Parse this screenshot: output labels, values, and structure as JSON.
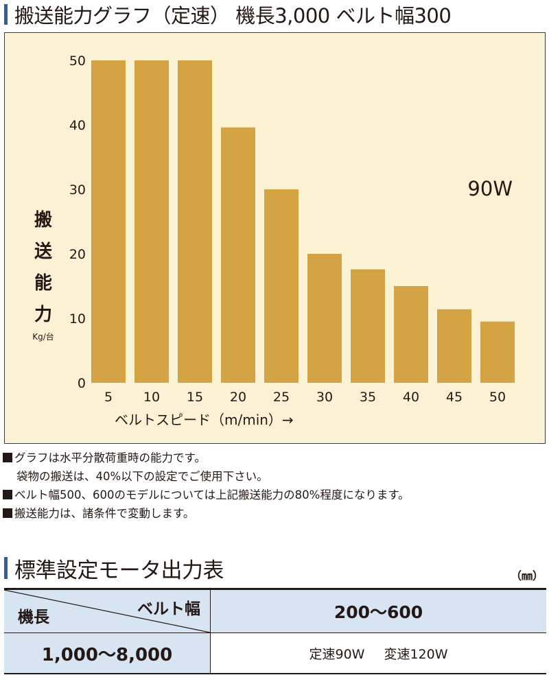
{
  "title": "搬送能力グラフ（定速） 機長3,000 ベルト幅300",
  "chart_data": {
    "type": "bar",
    "categories": [
      "5",
      "10",
      "15",
      "20",
      "25",
      "30",
      "35",
      "40",
      "45",
      "50"
    ],
    "values": [
      50,
      50,
      50,
      39.6,
      30,
      20,
      17.6,
      15,
      11.4,
      9.5
    ],
    "xlabel": "ベルトスピード（m/min）→",
    "ylabel_chars": [
      "搬",
      "送",
      "能",
      "力"
    ],
    "ylabel_unit": "Kg/台",
    "yticks": [
      0,
      10,
      20,
      30,
      40,
      50
    ],
    "ylim": [
      0,
      50
    ],
    "annotation": "90W",
    "grid": false,
    "bar_color": "#d4a444",
    "background_color": "#fbf2d5"
  },
  "notes": [
    "グラフは水平分散荷重時の能力です。",
    "袋物の搬送は、40%以下の設定でご使用下さい。",
    "ベルト幅500、600のモデルについては上記搬送能力の80%程度になります。",
    "搬送能力は、諸条件で変動します。"
  ],
  "table": {
    "title": "標準設定モータ出力表",
    "unit": "（㎜）",
    "header_row_label": "機長",
    "header_col_label": "ベルト幅",
    "header_value": "200〜600",
    "row_label": "1,000〜8,000",
    "row_values": [
      "定速90W",
      "変速120W"
    ]
  },
  "colors": {
    "accent": "#3b5b8c",
    "table_header_bg": "#d7e4f2"
  }
}
